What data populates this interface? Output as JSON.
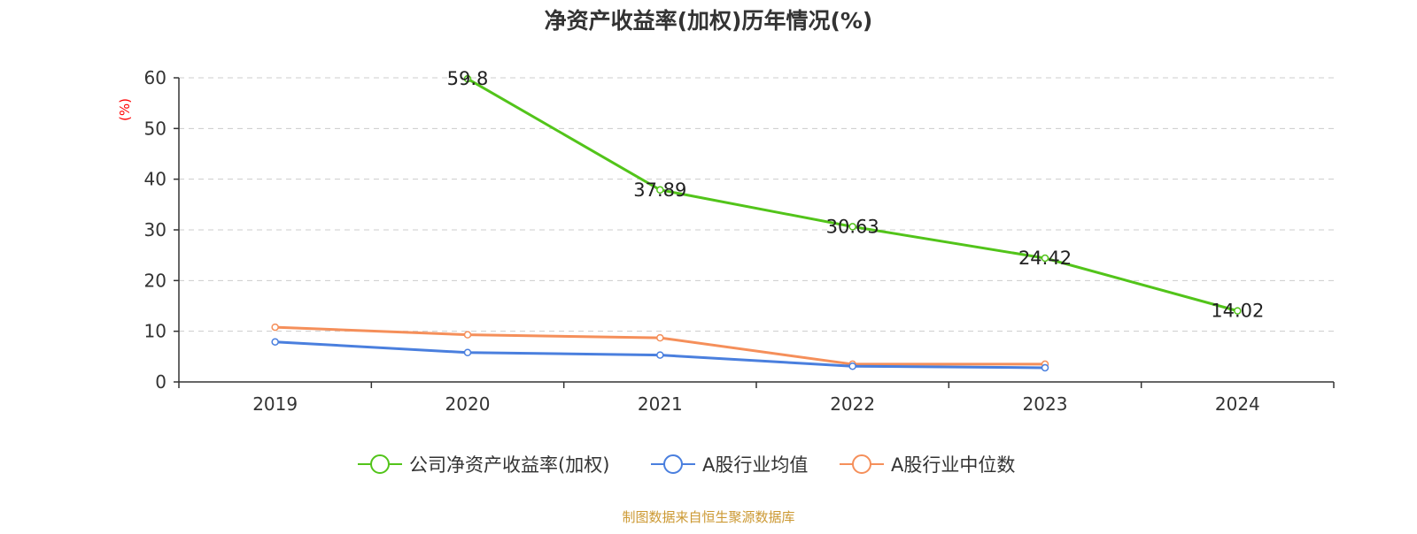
{
  "chart_data": {
    "type": "line",
    "title": "净资产收益率(加权)历年情况(%)",
    "ylabel": "(%)",
    "ylim": [
      0,
      60
    ],
    "yticks": [
      0,
      10,
      20,
      30,
      40,
      50,
      60
    ],
    "grid": true,
    "legend_position": "bottom",
    "categories": [
      "2019",
      "2020",
      "2021",
      "2022",
      "2023",
      "2024"
    ],
    "series": [
      {
        "name": "公司净资产收益率(加权)",
        "color": "#52c41a",
        "values": [
          null,
          59.8,
          37.89,
          30.63,
          24.42,
          14.02
        ],
        "labels": [
          "",
          "59.8",
          "37.89",
          "30.63",
          "24.42",
          "14.02"
        ]
      },
      {
        "name": "A股行业均值",
        "color": "#4a7fde",
        "values": [
          7.9,
          5.8,
          5.3,
          3.1,
          2.8,
          null
        ]
      },
      {
        "name": "A股行业中位数",
        "color": "#f58f5a",
        "values": [
          10.8,
          9.3,
          8.7,
          3.5,
          3.5,
          null
        ]
      }
    ],
    "source": "制图数据来自恒生聚源数据库",
    "colors": {
      "ylabel": "#ff0000",
      "source": "#cc9933",
      "axis": "#333333",
      "grid": "#cccccc"
    }
  }
}
